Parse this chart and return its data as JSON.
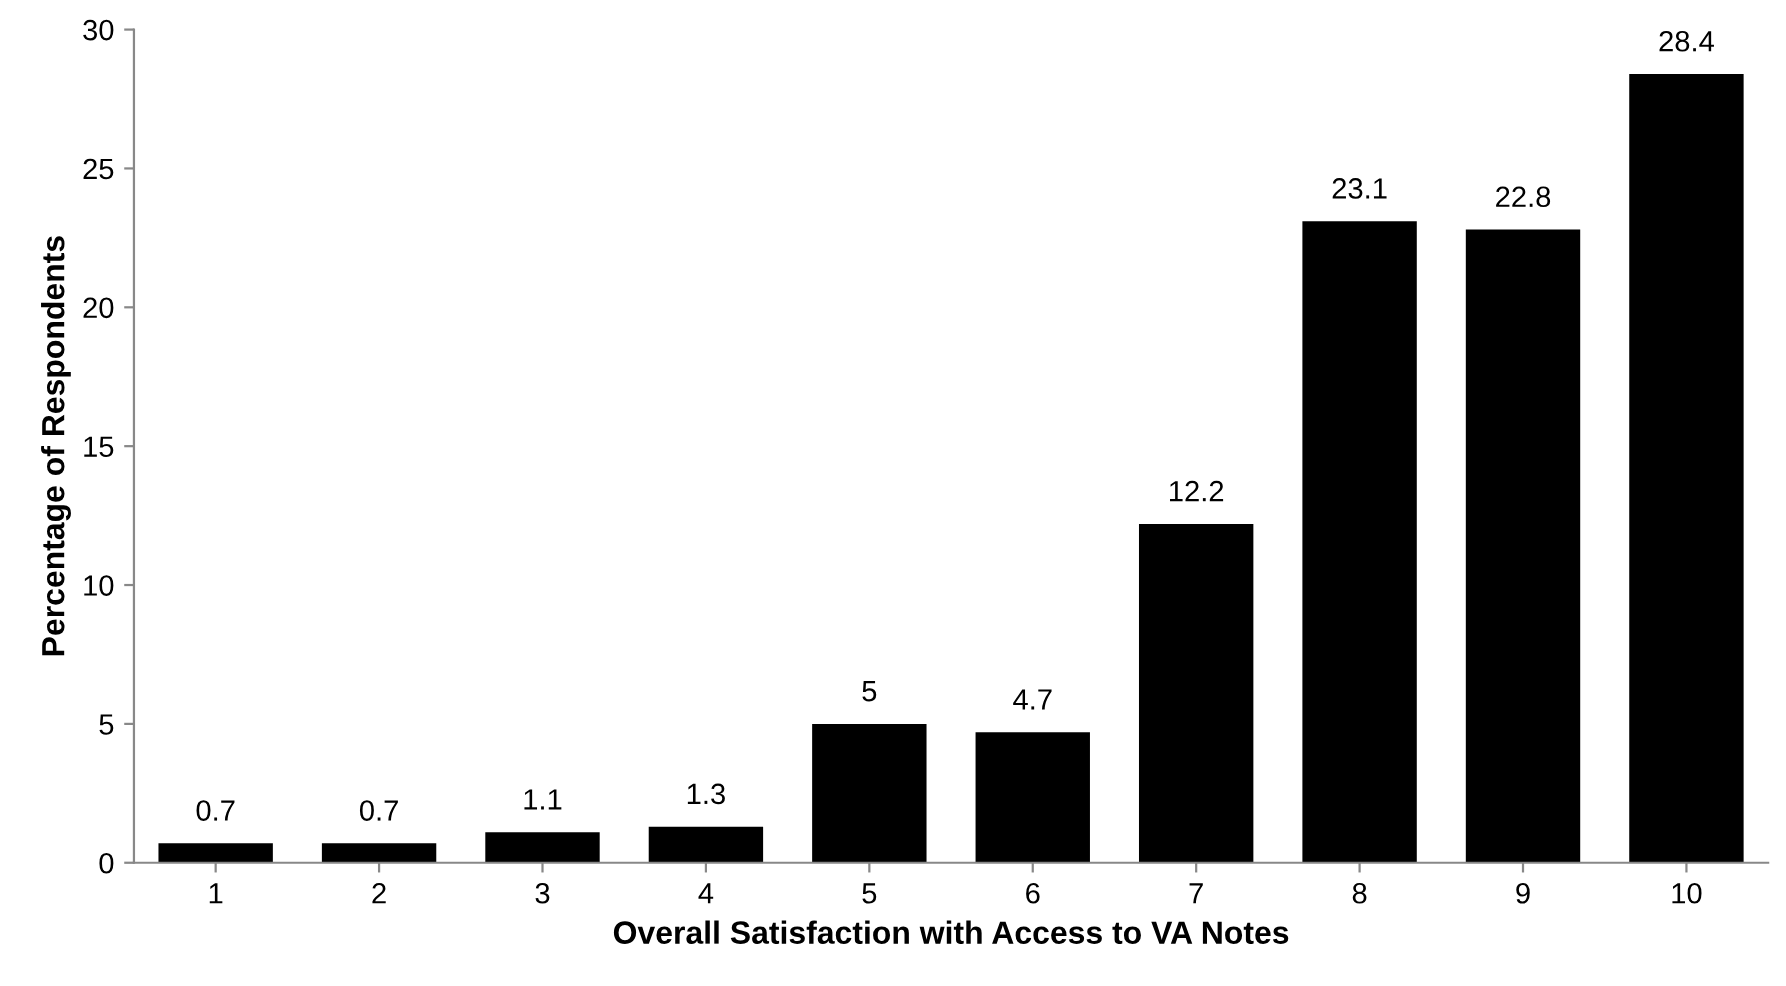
{
  "chart_data": {
    "type": "bar",
    "xlabel": "Overall Satisfaction with Access to VA Notes",
    "ylabel": "Percentage of Respondents",
    "categories": [
      "1",
      "2",
      "3",
      "4",
      "5",
      "6",
      "7",
      "8",
      "9",
      "10"
    ],
    "values": [
      0.7,
      0.7,
      1.1,
      1.3,
      5,
      4.7,
      12.2,
      23.1,
      22.8,
      28.4
    ],
    "color": "#000000",
    "ylim": [
      0,
      30
    ],
    "yticks": [
      0,
      5,
      10,
      15,
      20,
      25,
      30
    ],
    "data_labels": true,
    "grid": false,
    "legend": false
  }
}
